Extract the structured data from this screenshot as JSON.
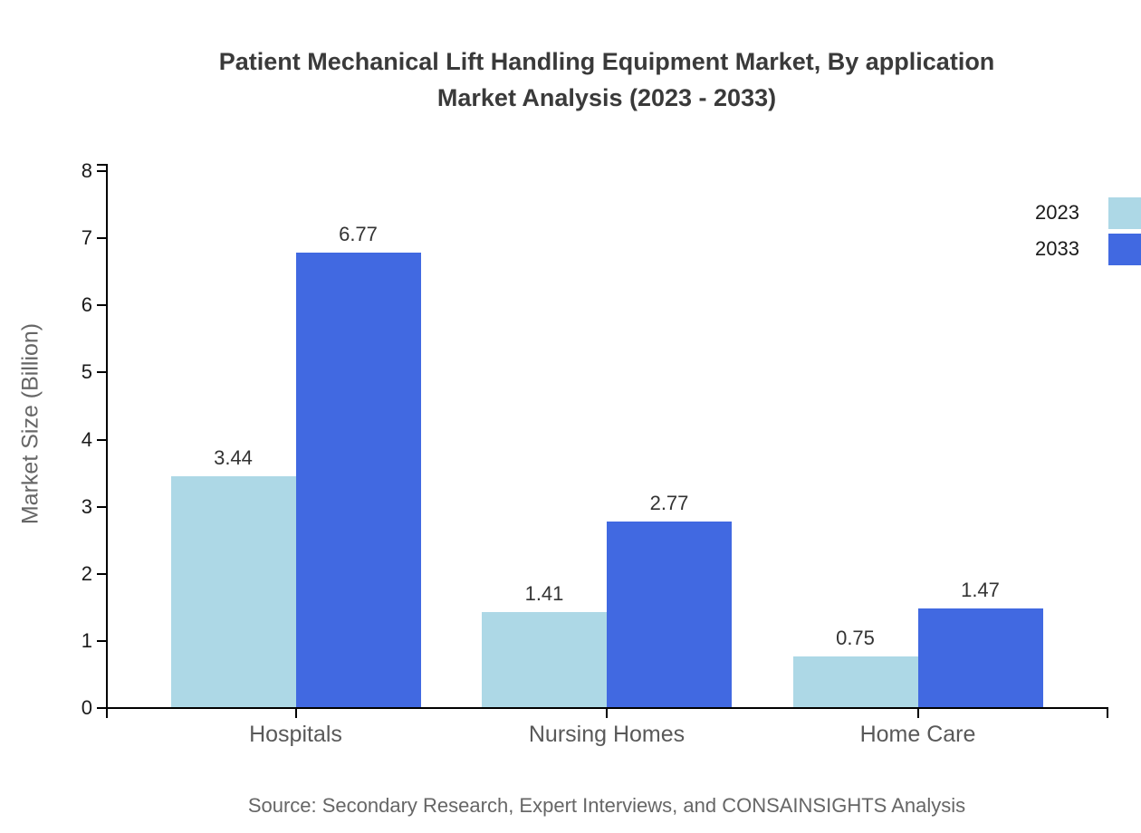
{
  "title": {
    "line1": "Patient Mechanical Lift Handling Equipment Market, By application",
    "line2": "Market Analysis (2023 - 2033)"
  },
  "source_note": "Source: Secondary Research, Expert Interviews, and CONSAINSIGHTS Analysis",
  "chart_data": {
    "type": "bar",
    "title": "Patient Mechanical Lift Handling Equipment Market, By application Market Analysis (2023 - 2033)",
    "categories": [
      "Hospitals",
      "Nursing Homes",
      "Home Care"
    ],
    "series": [
      {
        "name": "2023",
        "color": "#ADD8E6",
        "values": [
          3.44,
          1.41,
          0.75
        ]
      },
      {
        "name": "2033",
        "color": "#4169E1",
        "values": [
          6.77,
          2.77,
          1.47
        ]
      }
    ],
    "xlabel": "",
    "ylabel": "Market Size (Billion)",
    "ylim": [
      0,
      8
    ],
    "yticks": [
      0,
      1,
      2,
      3,
      4,
      5,
      6,
      7,
      8
    ],
    "value_label_decimals": 2,
    "grid": false,
    "legend_position": "top-right",
    "axis_color": "#000000",
    "text_colors": {
      "title": "#3a3a3a",
      "tick_labels": "#1a1a1a",
      "category_labels": "#595959",
      "value_labels": "#333333",
      "source": "#666666",
      "y_axis_title": "#666666"
    }
  }
}
